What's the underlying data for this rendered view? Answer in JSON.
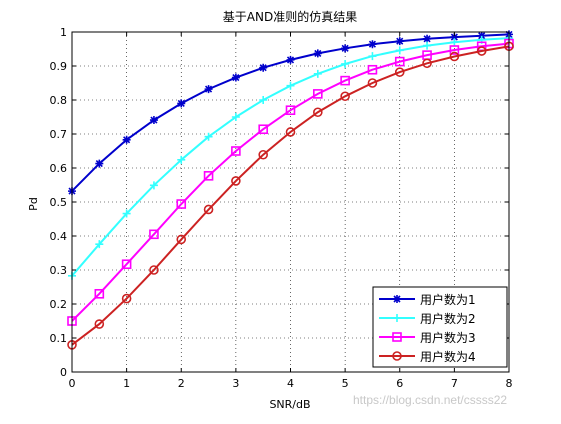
{
  "chart_data": {
    "type": "line",
    "title": "基于AND准则的仿真结果",
    "xlabel": "SNR/dB",
    "ylabel": "Pd",
    "xlim": [
      0,
      8
    ],
    "ylim": [
      0,
      1
    ],
    "xticks": [
      0,
      1,
      2,
      3,
      4,
      5,
      6,
      7,
      8
    ],
    "yticks": [
      0,
      0.1,
      0.2,
      0.3,
      0.4,
      0.5,
      0.6,
      0.7,
      0.8,
      0.9,
      1
    ],
    "grid": "dotted",
    "legend_position": "bottom-right",
    "x": [
      0,
      0.5,
      1,
      1.5,
      2,
      2.5,
      3,
      3.5,
      4,
      4.5,
      5,
      5.5,
      6,
      6.5,
      7,
      7.5,
      8
    ],
    "series": [
      {
        "name": "用户数为1",
        "color": "#0000cc",
        "marker": "star",
        "values": [
          0.532,
          0.613,
          0.683,
          0.741,
          0.79,
          0.832,
          0.866,
          0.895,
          0.918,
          0.937,
          0.952,
          0.964,
          0.973,
          0.98,
          0.985,
          0.989,
          0.993
        ]
      },
      {
        "name": "用户数为2",
        "color": "#33ffff",
        "marker": "plus",
        "values": [
          0.283,
          0.376,
          0.466,
          0.549,
          0.624,
          0.692,
          0.75,
          0.8,
          0.842,
          0.877,
          0.906,
          0.929,
          0.946,
          0.96,
          0.97,
          0.977,
          0.982
        ]
      },
      {
        "name": "用户数为3",
        "color": "#ff00ff",
        "marker": "square",
        "values": [
          0.15,
          0.23,
          0.317,
          0.405,
          0.494,
          0.577,
          0.65,
          0.714,
          0.77,
          0.818,
          0.857,
          0.889,
          0.913,
          0.932,
          0.947,
          0.958,
          0.966
        ]
      },
      {
        "name": "用户数为4",
        "color": "#cc2222",
        "marker": "circle",
        "values": [
          0.08,
          0.141,
          0.216,
          0.3,
          0.39,
          0.478,
          0.562,
          0.639,
          0.706,
          0.764,
          0.811,
          0.85,
          0.882,
          0.908,
          0.928,
          0.944,
          0.958
        ]
      }
    ]
  },
  "watermark": "https://blog.csdn.net/cssss22"
}
